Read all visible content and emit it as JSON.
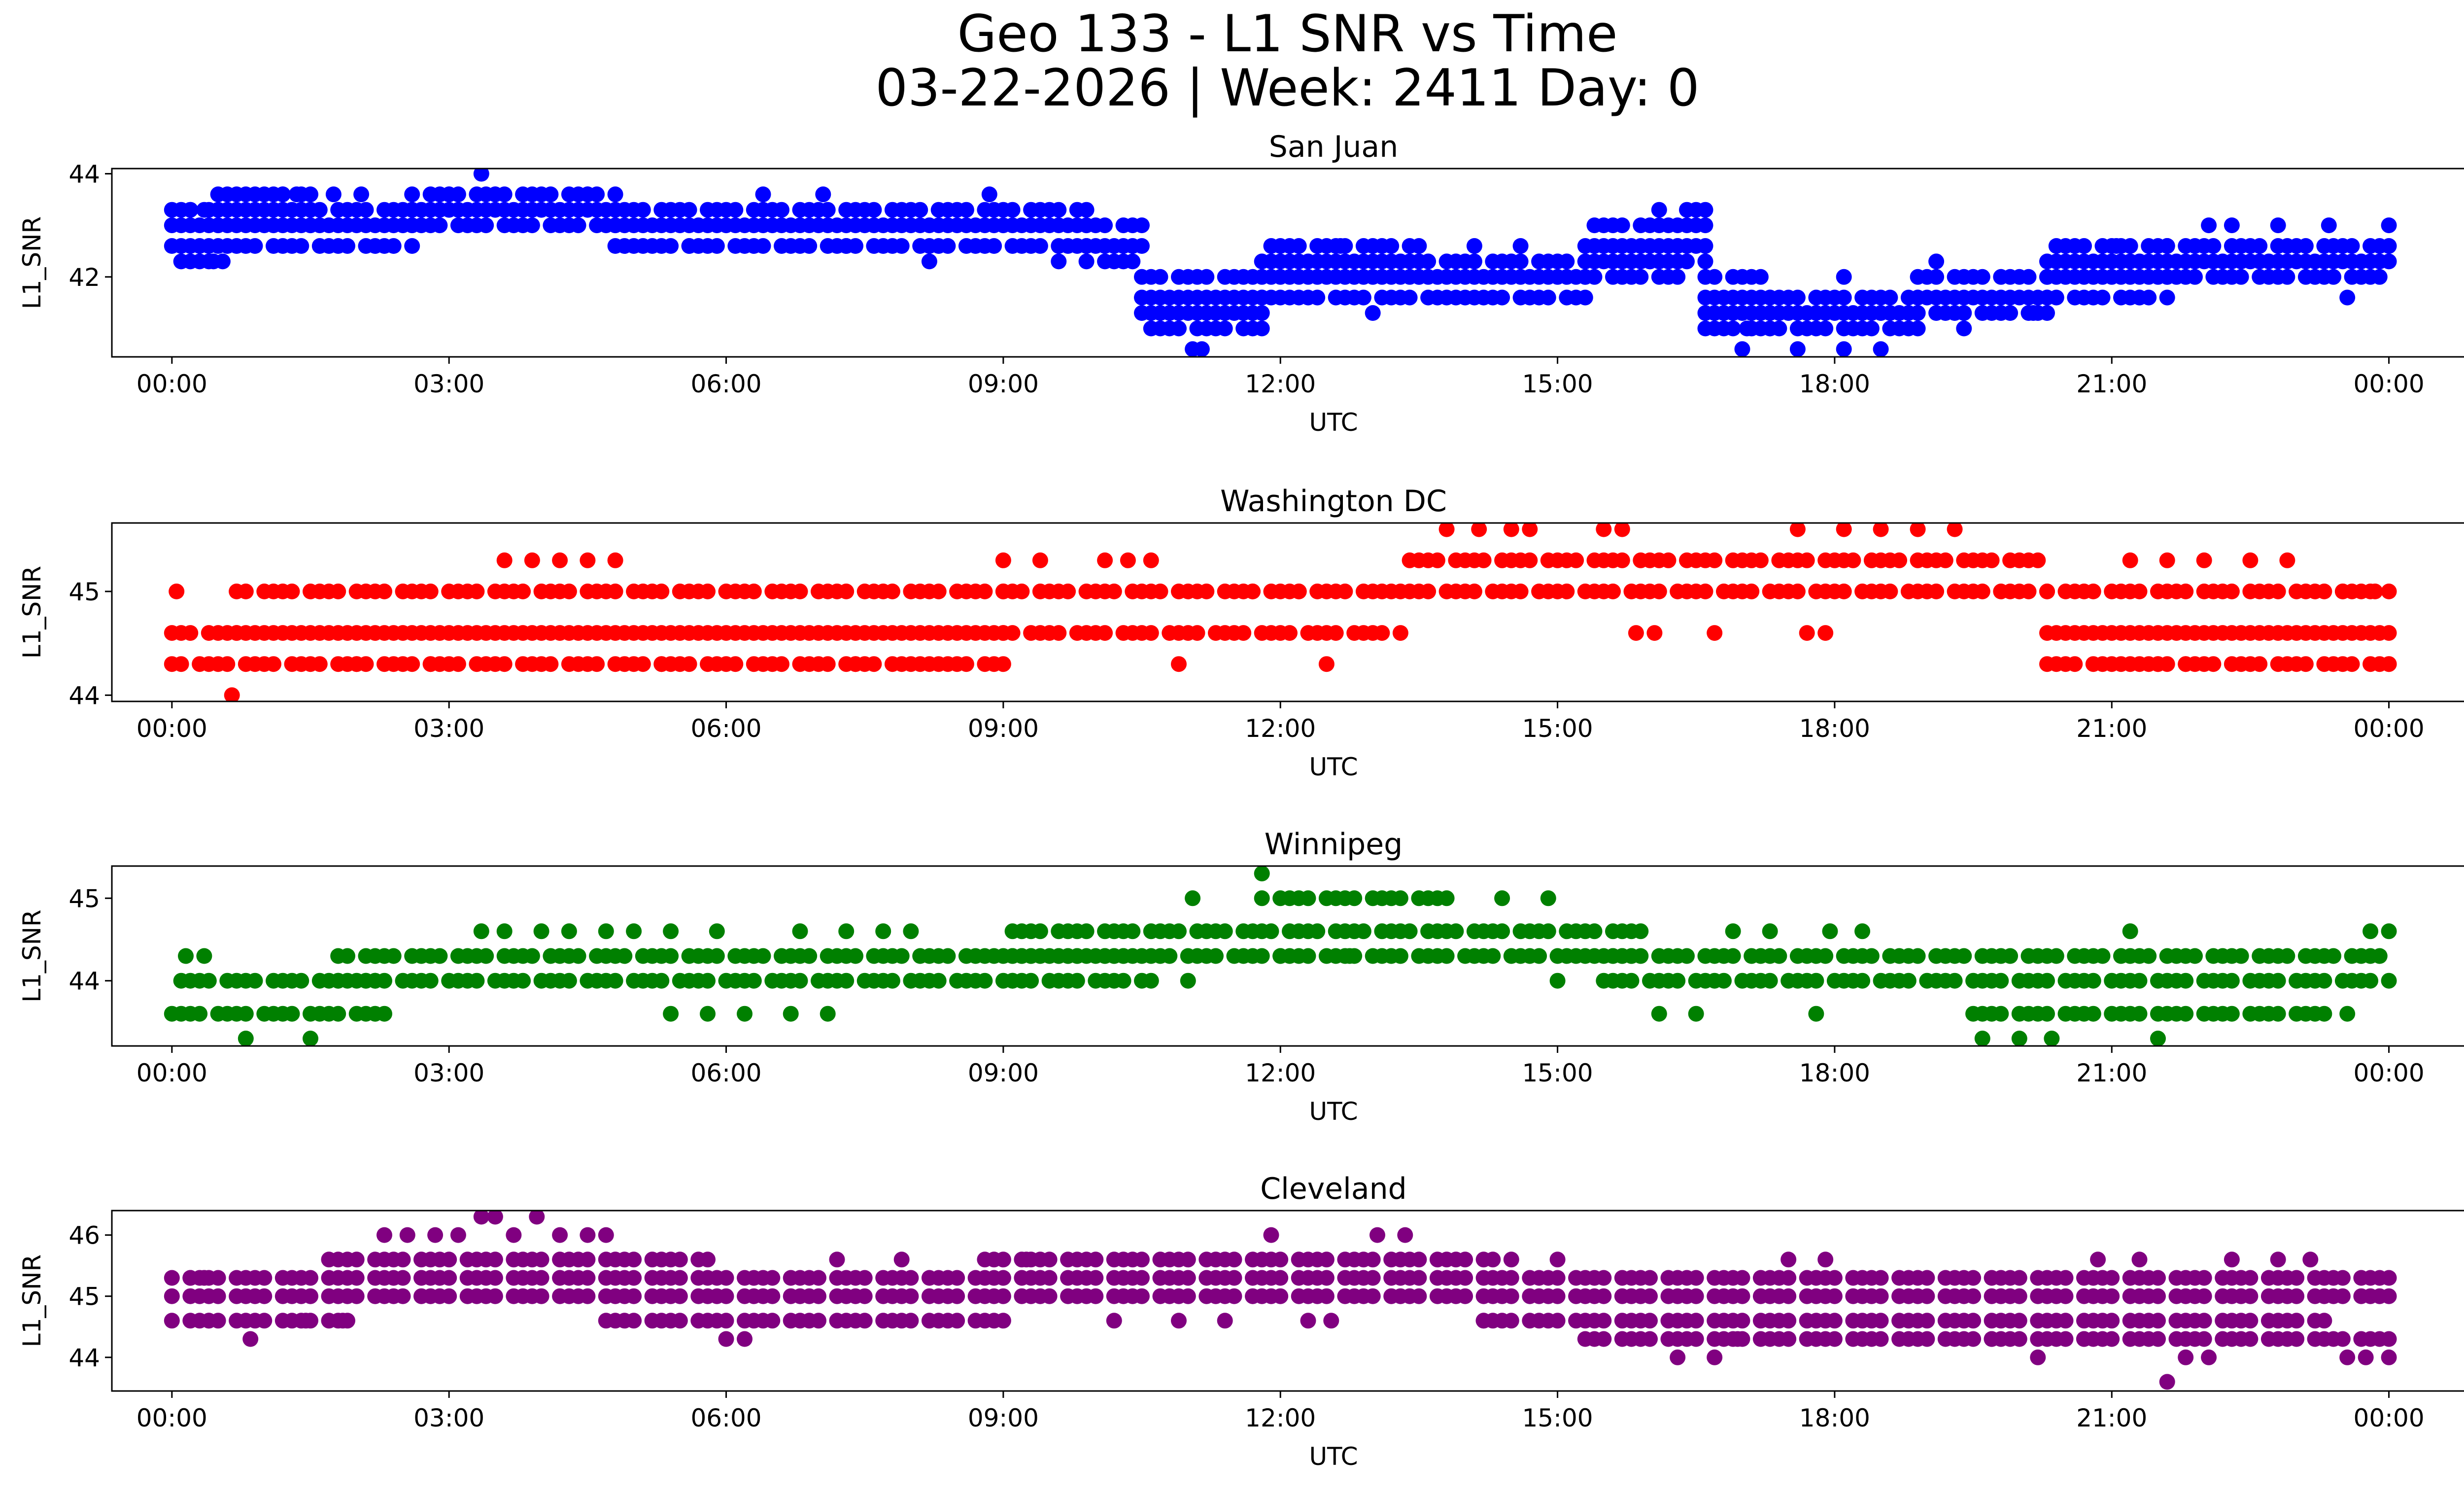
{
  "figure": {
    "title_line1": "Geo 133 - L1 SNR vs Time",
    "title_line2": "03-22-2026 | Week: 2411 Day: 0"
  },
  "chart_data": [
    {
      "type": "scatter",
      "title": "San Juan",
      "xlabel": "UTC",
      "ylabel": "L1_SNR",
      "color": "#0000ff",
      "xlim": [
        -0.65,
        25.8
      ],
      "ylim": [
        40.45,
        44.1
      ],
      "xticks": [
        0,
        3,
        6,
        9,
        12,
        15,
        18,
        21,
        24
      ],
      "xtick_labels": [
        "00:00",
        "03:00",
        "06:00",
        "09:00",
        "12:00",
        "15:00",
        "18:00",
        "21:00",
        "00:00"
      ],
      "yticks": [
        42,
        44
      ],
      "levels": [
        40.6,
        41.0,
        41.3,
        41.6,
        42.0,
        42.3,
        42.6,
        43.0,
        43.3,
        43.6,
        44.0
      ],
      "bands": [
        [
          0.0,
          0.5,
          [
            42.3,
            42.6,
            43.0,
            43.3
          ]
        ],
        [
          0.5,
          1.5,
          [
            42.6,
            43.0,
            43.3,
            43.6
          ]
        ],
        [
          1.5,
          2.6,
          [
            42.6,
            43.0,
            43.3
          ]
        ],
        [
          2.6,
          4.8,
          [
            43.0,
            43.3,
            43.6
          ]
        ],
        [
          4.8,
          9.9,
          [
            42.6,
            43.0,
            43.3
          ]
        ],
        [
          9.9,
          10.5,
          [
            42.3,
            42.6,
            43.0
          ]
        ],
        [
          10.5,
          11.8,
          [
            41.0,
            41.3,
            41.6,
            42.0
          ]
        ],
        [
          11.8,
          13.5,
          [
            41.6,
            42.0,
            42.3,
            42.6
          ]
        ],
        [
          13.5,
          15.3,
          [
            41.6,
            42.0,
            42.3
          ]
        ],
        [
          15.3,
          16.3,
          [
            42.0,
            42.3,
            42.6,
            43.0
          ]
        ],
        [
          16.3,
          16.6,
          [
            42.3,
            42.6,
            43.0,
            43.3
          ]
        ],
        [
          16.6,
          17.3,
          [
            41.0,
            41.3,
            41.6,
            42.0
          ]
        ],
        [
          17.3,
          18.9,
          [
            41.0,
            41.3,
            41.6
          ]
        ],
        [
          18.9,
          20.3,
          [
            41.3,
            41.6,
            42.0
          ]
        ],
        [
          20.3,
          21.6,
          [
            41.6,
            42.0,
            42.3,
            42.6
          ]
        ],
        [
          21.6,
          24.0,
          [
            42.0,
            42.3,
            42.6
          ]
        ]
      ],
      "points": [
        [
          3.35,
          44.0
        ],
        [
          0.2,
          43.3
        ],
        [
          0.35,
          43.3
        ],
        [
          0.8,
          43.6
        ],
        [
          1.2,
          43.6
        ],
        [
          1.35,
          43.6
        ],
        [
          1.75,
          43.6
        ],
        [
          2.05,
          43.6
        ],
        [
          3.0,
          43.6
        ],
        [
          3.5,
          43.6
        ],
        [
          4.5,
          43.6
        ],
        [
          6.4,
          43.6
        ],
        [
          7.05,
          43.6
        ],
        [
          8.85,
          43.6
        ],
        [
          0.45,
          42.3
        ],
        [
          0.55,
          42.3
        ],
        [
          11.05,
          40.6
        ],
        [
          11.15,
          40.6
        ],
        [
          17.0,
          40.6
        ],
        [
          17.6,
          40.6
        ],
        [
          18.1,
          40.6
        ],
        [
          18.5,
          40.6
        ],
        [
          18.1,
          42.0
        ],
        [
          17.05,
          41.0
        ],
        [
          19.1,
          42.3
        ],
        [
          19.4,
          41.0
        ],
        [
          20.15,
          41.3
        ],
        [
          21.05,
          42.6
        ],
        [
          21.3,
          41.6
        ],
        [
          21.6,
          42.6
        ],
        [
          22.05,
          43.0
        ],
        [
          22.3,
          43.0
        ],
        [
          22.8,
          43.0
        ],
        [
          23.35,
          43.0
        ],
        [
          23.55,
          41.6
        ],
        [
          24.0,
          43.0
        ],
        [
          12.0,
          41.6
        ],
        [
          12.65,
          42.6
        ],
        [
          14.0,
          41.6
        ],
        [
          14.6,
          42.6
        ],
        [
          14.1,
          42.6
        ],
        [
          13.0,
          41.3
        ],
        [
          9.6,
          42.3
        ],
        [
          5.0,
          42.6
        ],
        [
          5.6,
          42.6
        ],
        [
          7.3,
          42.6
        ],
        [
          8.2,
          42.3
        ],
        [
          16.1,
          43.3
        ],
        [
          16.0,
          42.3
        ]
      ]
    },
    {
      "type": "scatter",
      "title": "Washington DC",
      "xlabel": "UTC",
      "ylabel": "L1_SNR",
      "color": "#ff0000",
      "xlim": [
        -0.65,
        25.8
      ],
      "ylim": [
        43.94,
        45.66
      ],
      "xticks": [
        0,
        3,
        6,
        9,
        12,
        15,
        18,
        21,
        24
      ],
      "xtick_labels": [
        "00:00",
        "03:00",
        "06:00",
        "09:00",
        "12:00",
        "15:00",
        "18:00",
        "21:00",
        "00:00"
      ],
      "yticks": [
        44,
        45
      ],
      "levels": [
        44.0,
        44.3,
        44.6,
        45.0,
        45.3,
        45.6
      ],
      "bands": [
        [
          0.0,
          0.7,
          [
            44.3,
            44.6
          ]
        ],
        [
          0.7,
          9.0,
          [
            44.3,
            44.6,
            45.0
          ]
        ],
        [
          9.0,
          13.3,
          [
            44.6,
            45.0
          ]
        ],
        [
          13.3,
          20.3,
          [
            45.0,
            45.3
          ]
        ],
        [
          20.3,
          24.0,
          [
            44.3,
            44.6,
            45.0
          ]
        ]
      ],
      "points": [
        [
          0.05,
          45.0
        ],
        [
          0.65,
          44.0
        ],
        [
          3.6,
          45.3
        ],
        [
          3.9,
          45.3
        ],
        [
          4.2,
          45.3
        ],
        [
          4.5,
          45.3
        ],
        [
          4.8,
          45.3
        ],
        [
          9.0,
          45.3
        ],
        [
          9.4,
          45.3
        ],
        [
          10.1,
          45.3
        ],
        [
          10.35,
          45.3
        ],
        [
          10.6,
          45.3
        ],
        [
          11.7,
          45.0
        ],
        [
          12.2,
          45.0
        ],
        [
          13.8,
          45.6
        ],
        [
          14.15,
          45.6
        ],
        [
          14.5,
          45.6
        ],
        [
          14.7,
          45.6
        ],
        [
          15.5,
          45.6
        ],
        [
          15.7,
          45.6
        ],
        [
          17.6,
          45.6
        ],
        [
          18.1,
          45.6
        ],
        [
          18.5,
          45.6
        ],
        [
          18.9,
          45.6
        ],
        [
          19.3,
          45.6
        ],
        [
          15.85,
          44.6
        ],
        [
          16.05,
          44.6
        ],
        [
          16.7,
          44.6
        ],
        [
          17.7,
          44.6
        ],
        [
          17.9,
          44.6
        ],
        [
          21.2,
          45.3
        ],
        [
          21.6,
          45.3
        ],
        [
          22.0,
          45.3
        ],
        [
          22.5,
          45.3
        ],
        [
          22.9,
          45.3
        ],
        [
          23.5,
          45.0
        ],
        [
          23.85,
          45.0
        ],
        [
          21.5,
          44.3
        ],
        [
          21.2,
          44.3
        ],
        [
          21.8,
          44.3
        ],
        [
          2.8,
          44.3
        ],
        [
          2.0,
          44.3
        ],
        [
          5.3,
          44.3
        ],
        [
          7.4,
          44.3
        ],
        [
          8.2,
          44.3
        ],
        [
          10.9,
          44.3
        ],
        [
          12.5,
          44.3
        ],
        [
          24.0,
          44.3
        ]
      ]
    },
    {
      "type": "scatter",
      "title": "Winnipeg",
      "xlabel": "UTC",
      "ylabel": "L1_SNR",
      "color": "#008000",
      "xlim": [
        -0.65,
        25.8
      ],
      "ylim": [
        43.21,
        45.39
      ],
      "xticks": [
        0,
        3,
        6,
        9,
        12,
        15,
        18,
        21,
        24
      ],
      "xtick_labels": [
        "00:00",
        "03:00",
        "06:00",
        "09:00",
        "12:00",
        "15:00",
        "18:00",
        "21:00",
        "00:00"
      ],
      "yticks": [
        44,
        45
      ],
      "levels": [
        43.3,
        43.6,
        44.0,
        44.3,
        44.6,
        45.0,
        45.3
      ],
      "bands": [
        [
          0.0,
          2.2,
          [
            43.6,
            44.0
          ]
        ],
        [
          1.8,
          10.5,
          [
            44.0,
            44.3
          ]
        ],
        [
          9.0,
          15.9,
          [
            44.3,
            44.6
          ]
        ],
        [
          11.8,
          13.8,
          [
            45.0
          ]
        ],
        [
          15.4,
          24.0,
          [
            44.0,
            44.3
          ]
        ],
        [
          19.4,
          23.3,
          [
            43.6
          ]
        ]
      ],
      "points": [
        [
          0.15,
          44.3
        ],
        [
          0.35,
          44.3
        ],
        [
          0.8,
          43.3
        ],
        [
          1.5,
          43.3
        ],
        [
          2.3,
          43.6
        ],
        [
          3.35,
          44.6
        ],
        [
          3.6,
          44.6
        ],
        [
          4.0,
          44.6
        ],
        [
          4.3,
          44.6
        ],
        [
          4.7,
          44.6
        ],
        [
          5.0,
          44.6
        ],
        [
          5.4,
          44.6
        ],
        [
          5.9,
          44.6
        ],
        [
          6.8,
          44.6
        ],
        [
          7.3,
          44.6
        ],
        [
          7.7,
          44.6
        ],
        [
          8.0,
          44.6
        ],
        [
          5.4,
          43.6
        ],
        [
          5.8,
          43.6
        ],
        [
          6.2,
          43.6
        ],
        [
          6.7,
          43.6
        ],
        [
          7.1,
          43.6
        ],
        [
          9.1,
          44.0
        ],
        [
          10.6,
          44.0
        ],
        [
          11.0,
          44.0
        ],
        [
          11.05,
          45.0
        ],
        [
          11.8,
          45.3
        ],
        [
          12.0,
          44.3
        ],
        [
          12.75,
          44.3
        ],
        [
          14.4,
          45.0
        ],
        [
          14.9,
          45.0
        ],
        [
          15.0,
          44.0
        ],
        [
          16.1,
          43.6
        ],
        [
          16.5,
          43.6
        ],
        [
          16.9,
          44.6
        ],
        [
          17.3,
          44.6
        ],
        [
          17.8,
          43.6
        ],
        [
          17.95,
          44.6
        ],
        [
          18.3,
          44.6
        ],
        [
          19.6,
          43.3
        ],
        [
          20.0,
          43.3
        ],
        [
          20.35,
          43.3
        ],
        [
          21.2,
          44.6
        ],
        [
          21.5,
          43.3
        ],
        [
          23.55,
          43.6
        ],
        [
          23.8,
          44.6
        ],
        [
          24.0,
          44.6
        ]
      ]
    },
    {
      "type": "scatter",
      "title": "Cleveland",
      "xlabel": "UTC",
      "ylabel": "L1_SNR",
      "color": "#800080",
      "xlim": [
        -0.65,
        25.8
      ],
      "ylim": [
        43.45,
        46.4
      ],
      "xticks": [
        0,
        3,
        6,
        9,
        12,
        15,
        18,
        21,
        24
      ],
      "xtick_labels": [
        "00:00",
        "03:00",
        "06:00",
        "09:00",
        "12:00",
        "15:00",
        "18:00",
        "21:00",
        "00:00"
      ],
      "yticks": [
        44,
        45,
        46
      ],
      "levels": [
        43.6,
        44.0,
        44.3,
        44.6,
        45.0,
        45.3,
        45.6,
        46.0,
        46.3
      ],
      "bands": [
        [
          0.0,
          24.0,
          [
            45.0
          ]
        ],
        [
          0.0,
          1.9,
          [
            44.6
          ]
        ],
        [
          0.0,
          24.0,
          [
            45.3
          ]
        ],
        [
          1.6,
          5.8,
          [
            45.6
          ]
        ],
        [
          4.6,
          9.0,
          [
            44.6
          ]
        ],
        [
          8.9,
          14.3,
          [
            45.6
          ]
        ],
        [
          14.2,
          23.3,
          [
            44.6
          ]
        ],
        [
          15.3,
          24.0,
          [
            44.3
          ]
        ]
      ],
      "points": [
        [
          0.2,
          45.3
        ],
        [
          0.35,
          45.3
        ],
        [
          0.4,
          44.6
        ],
        [
          0.85,
          44.3
        ],
        [
          1.45,
          44.6
        ],
        [
          1.85,
          44.6
        ],
        [
          2.3,
          46.0
        ],
        [
          2.55,
          46.0
        ],
        [
          2.85,
          46.0
        ],
        [
          3.1,
          46.0
        ],
        [
          3.35,
          46.3
        ],
        [
          3.5,
          46.3
        ],
        [
          3.95,
          46.3
        ],
        [
          3.7,
          46.0
        ],
        [
          4.2,
          46.0
        ],
        [
          4.5,
          46.0
        ],
        [
          4.7,
          46.0
        ],
        [
          6.0,
          44.3
        ],
        [
          6.2,
          44.3
        ],
        [
          7.2,
          45.6
        ],
        [
          7.9,
          45.6
        ],
        [
          8.8,
          45.6
        ],
        [
          9.25,
          45.6
        ],
        [
          10.2,
          44.6
        ],
        [
          10.9,
          44.6
        ],
        [
          11.4,
          44.6
        ],
        [
          11.9,
          46.0
        ],
        [
          12.3,
          44.6
        ],
        [
          12.55,
          44.6
        ],
        [
          13.05,
          46.0
        ],
        [
          13.35,
          46.0
        ],
        [
          14.5,
          45.6
        ],
        [
          15.0,
          45.6
        ],
        [
          16.3,
          44.0
        ],
        [
          16.7,
          44.0
        ],
        [
          16.95,
          44.3
        ],
        [
          17.5,
          45.6
        ],
        [
          17.9,
          45.6
        ],
        [
          19.7,
          44.3
        ],
        [
          20.2,
          44.0
        ],
        [
          20.7,
          44.3
        ],
        [
          20.85,
          45.6
        ],
        [
          21.3,
          45.6
        ],
        [
          21.6,
          43.6
        ],
        [
          21.8,
          44.0
        ],
        [
          22.05,
          44.0
        ],
        [
          22.3,
          45.6
        ],
        [
          22.8,
          45.6
        ],
        [
          23.15,
          45.6
        ],
        [
          23.55,
          44.0
        ],
        [
          23.75,
          44.0
        ],
        [
          24.0,
          44.0
        ],
        [
          14.2,
          44.6
        ]
      ]
    }
  ]
}
